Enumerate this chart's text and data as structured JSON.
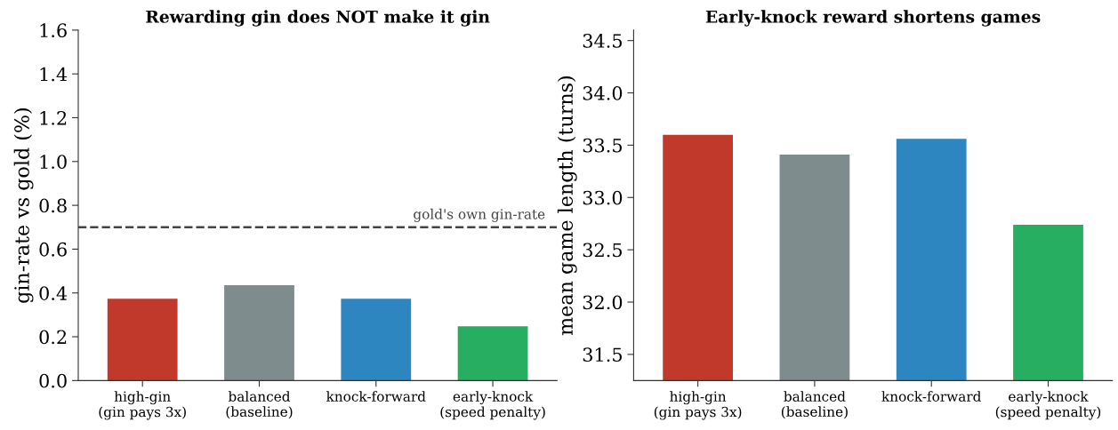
{
  "chart_data": [
    {
      "type": "bar",
      "title": "Rewarding gin does NOT make it gin",
      "ylabel": "gin-rate vs gold (%)",
      "categories": [
        "high-gin\n(gin pays 3x)",
        "balanced\n(baseline)",
        "knock-forward",
        "early-knock\n(speed penalty)"
      ],
      "values": [
        0.374,
        0.435,
        0.374,
        0.248
      ],
      "colors": [
        "#c0392b",
        "#7f8c8d",
        "#2e86c1",
        "#27ae60"
      ],
      "ylim": [
        0,
        1.6
      ],
      "yticks": [
        {
          "value": 0,
          "label": "0.0"
        },
        0.2,
        0.4,
        0.6,
        0.8,
        {
          "value": 1,
          "label": "1.0"
        },
        1.2,
        1.4,
        1.6
      ],
      "ref_lines": [
        {
          "axis": "y",
          "value": 0.7,
          "label": "gold's own gin-rate",
          "color": "#444444",
          "line_style": "dashed"
        }
      ],
      "grid": false,
      "legend": false
    },
    {
      "type": "bar",
      "title": "Early-knock reward shortens games",
      "ylabel": "mean game length (turns)",
      "categories": [
        "high-gin\n(gin pays 3x)",
        "balanced\n(baseline)",
        "knock-forward",
        "early-knock\n(speed penalty)"
      ],
      "values": [
        33.6,
        33.41,
        33.56,
        32.74
      ],
      "colors": [
        "#c0392b",
        "#7f8c8d",
        "#2e86c1",
        "#27ae60"
      ],
      "ylim": [
        31.25,
        34.6
      ],
      "yticks": [
        31.5,
        {
          "value": 32,
          "label": "32.0"
        },
        32.5,
        {
          "value": 33,
          "label": "33.0"
        },
        33.5,
        {
          "value": 34,
          "label": "34.0"
        },
        34.5
      ],
      "grid": false,
      "legend": false
    }
  ]
}
